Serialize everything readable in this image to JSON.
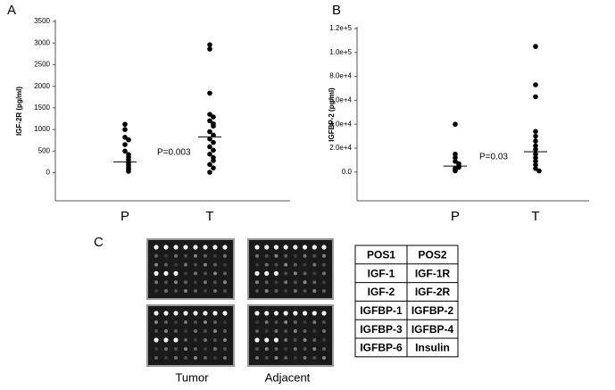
{
  "chart_data": [
    {
      "type": "strip",
      "panel": "A",
      "y_label": "IGF-2R (pg/ml)",
      "annotation": "P=0.003",
      "categories": [
        "P",
        "T"
      ],
      "points": [
        [
          1120,
          1000,
          820,
          760,
          650,
          500,
          420,
          360,
          300,
          230,
          180,
          120,
          80,
          30
        ],
        [
          2960,
          2860,
          1840,
          1350,
          1290,
          1200,
          1130,
          1080,
          950,
          870,
          780,
          700,
          600,
          520,
          430,
          350,
          280,
          190,
          110,
          10
        ]
      ],
      "means": [
        250,
        830
      ],
      "color": "#000000",
      "ylim": [
        -650,
        3500
      ],
      "yticks": [
        0,
        500,
        1000,
        1500,
        2000,
        2500,
        3000,
        3500
      ]
    },
    {
      "type": "strip",
      "panel": "B",
      "y_label": "IGFBP-2 (pg/ml)",
      "annotation": "P=0.03",
      "categories": [
        "P",
        "T"
      ],
      "points": [
        [
          40000,
          15000,
          12000,
          9000,
          7000,
          5000,
          4000,
          3000,
          2000,
          1000
        ],
        [
          105000,
          73000,
          63000,
          34000,
          30000,
          26000,
          22000,
          19000,
          15000,
          12000,
          9000,
          6000,
          3000,
          1000
        ]
      ],
      "means": [
        5000,
        17000
      ],
      "color": "#000000",
      "ylim": [
        -24000,
        120000
      ],
      "yticks": [
        {
          "value": 0,
          "label": "0.0"
        },
        {
          "value": 20000,
          "label": "2.0e+4"
        },
        {
          "value": 40000,
          "label": "4.0e+4"
        },
        {
          "value": 60000,
          "label": "6.0e+4"
        },
        {
          "value": 80000,
          "label": "8.0e+4"
        },
        {
          "value": 100000,
          "label": "1.0e+5"
        },
        {
          "value": 120000,
          "label": "1.2e+5"
        }
      ]
    }
  ],
  "panel_c": {
    "label": "C",
    "image_labels": [
      "Tumor",
      "Adjacent"
    ],
    "table": [
      [
        "POS1",
        "POS2"
      ],
      [
        "IGF-1",
        "IGF-1R"
      ],
      [
        "IGF-2",
        "IGF-2R"
      ],
      [
        "IGFBP-1",
        "IGFBP-2"
      ],
      [
        "IGFBP-3",
        "IGFBP-4"
      ],
      [
        "IGFBP-6",
        "Insulin"
      ]
    ]
  }
}
